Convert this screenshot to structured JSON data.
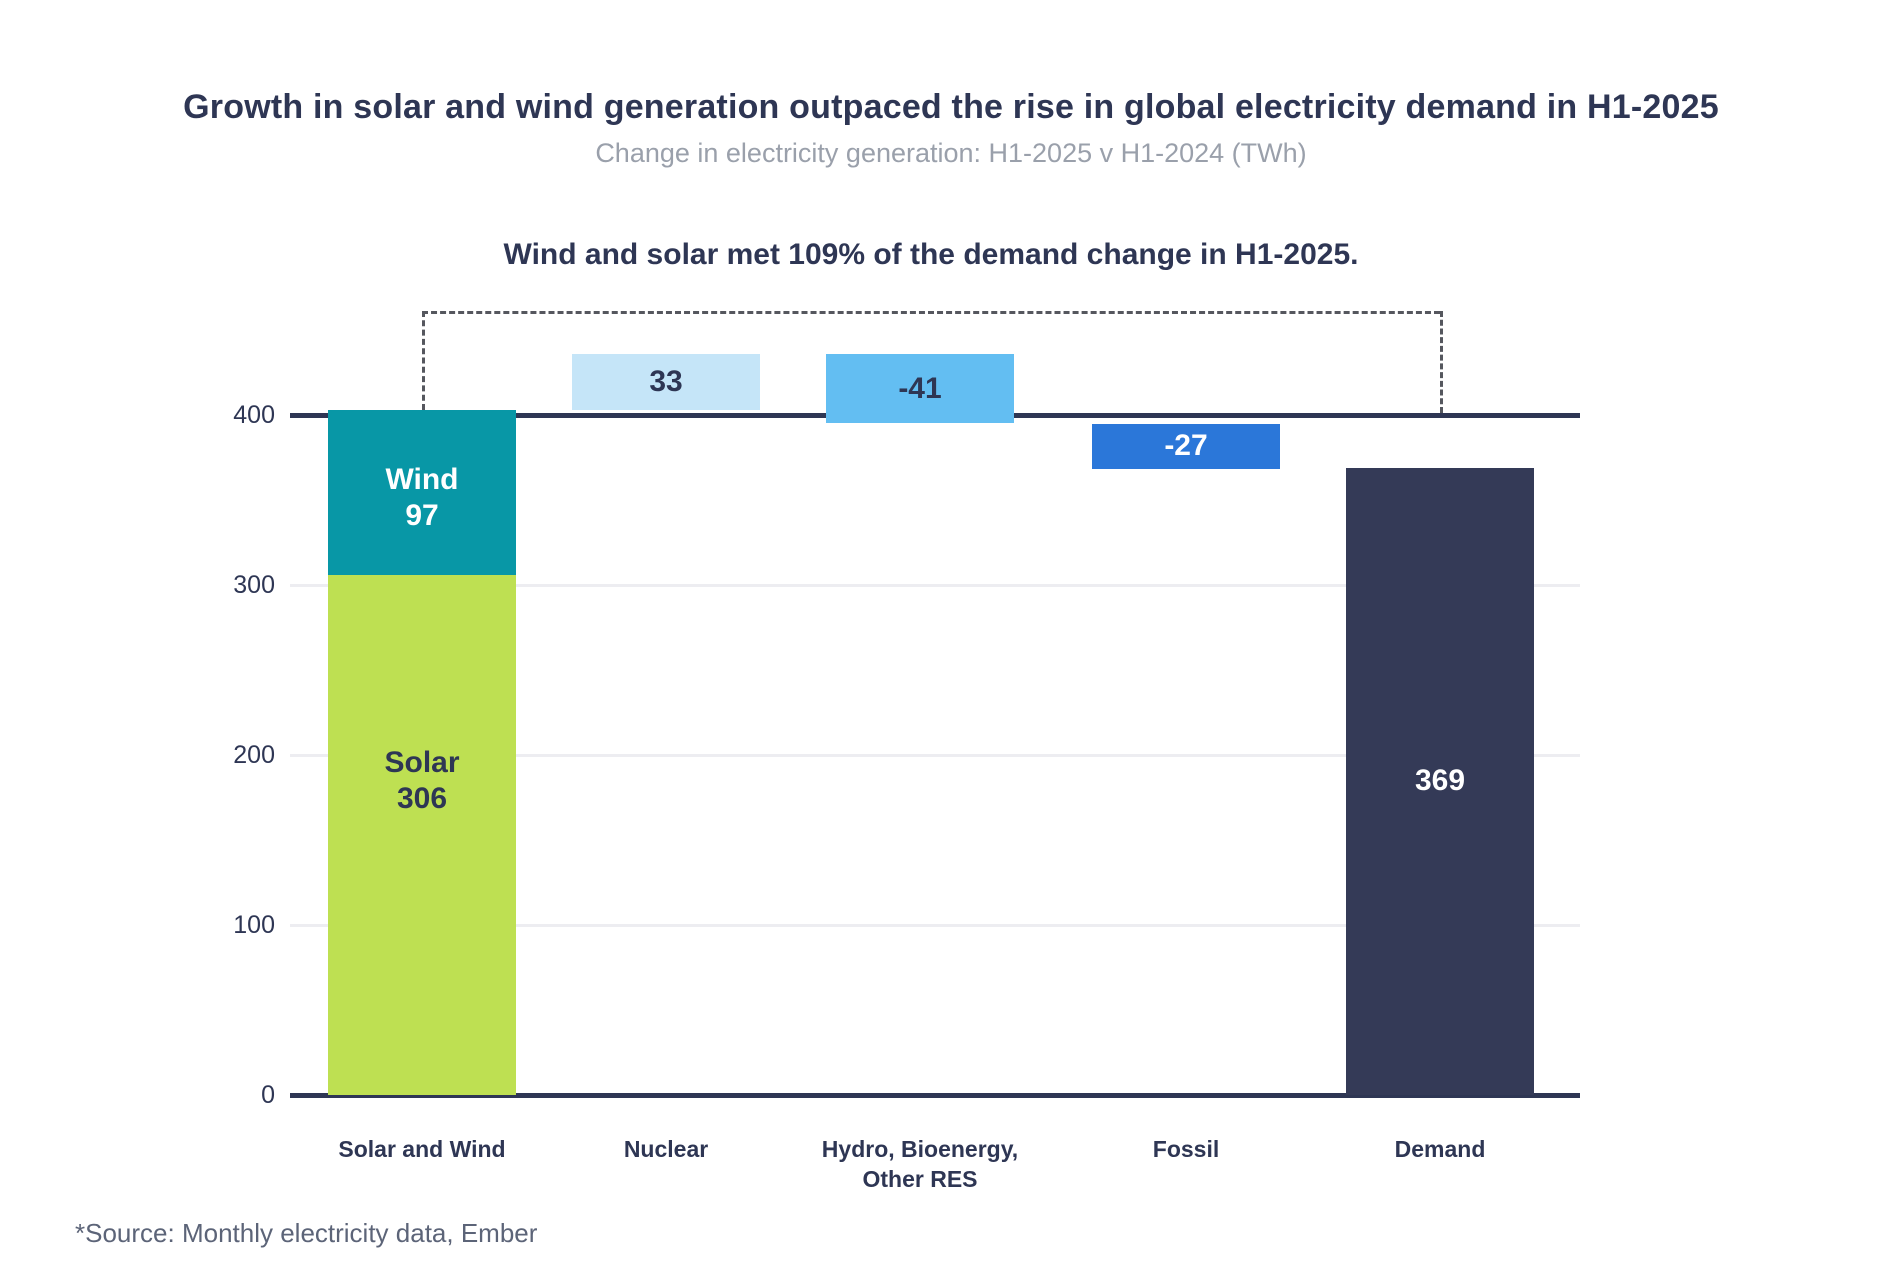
{
  "chart_data": {
    "type": "bar",
    "subtype": "waterfall",
    "title": "Growth in solar and wind generation outpaced the rise in global electricity demand in H1-2025",
    "subtitle": "Change in electricity generation: H1-2025 v H1-2024 (TWh)",
    "annotation": "Wind and solar met 109% of the demand change in H1-2025.",
    "source_note": "*Source: Monthly electricity data, Ember",
    "unit": "TWh",
    "ylabel": "",
    "xlabel": "",
    "ylim": [
      0,
      460
    ],
    "grid": "horizontal-light",
    "legend": "none",
    "y_axis": {
      "ticks": [
        0,
        100,
        200,
        300,
        400
      ]
    },
    "reference_line_value": 400,
    "categories": [
      "Solar and Wind",
      "Nuclear",
      "Hydro, Bioenergy,\nOther RES",
      "Fossil",
      "Demand"
    ],
    "bars": [
      {
        "category": "Solar and Wind",
        "stacked": true,
        "total": 403,
        "segments": [
          {
            "name": "Solar",
            "value": 306,
            "span": [
              0,
              306
            ],
            "color": "#bee052",
            "label_color": "#2e3654"
          },
          {
            "name": "Wind",
            "value": 97,
            "span": [
              306,
              403
            ],
            "color": "#0897a6",
            "label_color": "#ffffff"
          }
        ]
      },
      {
        "category": "Nuclear",
        "value": 33,
        "span": [
          403,
          436
        ],
        "color": "#c5e5f8",
        "label_color": "#2e3654"
      },
      {
        "category": "Hydro, Bioenergy,\nOther RES",
        "value": -41,
        "span": [
          395,
          436
        ],
        "color": "#63bef2",
        "label_color": "#2e3654"
      },
      {
        "category": "Fossil",
        "value": -27,
        "span": [
          368,
          395
        ],
        "color": "#2b77d9",
        "label_color": "#ffffff"
      },
      {
        "category": "Demand",
        "value": 369,
        "span": [
          0,
          369
        ],
        "color": "#343a57",
        "label_color": "#ffffff"
      }
    ],
    "colors": {
      "solar": "#bee052",
      "wind": "#0897a6",
      "nuclear": "#c5e5f8",
      "hydro_bio_other": "#63bef2",
      "fossil": "#2b77d9",
      "demand": "#343a57",
      "text_navy": "#2e3654",
      "subtitle_gray": "#9aa0ab",
      "gridline": "#ededf1",
      "dash_gray": "#55575e"
    }
  }
}
